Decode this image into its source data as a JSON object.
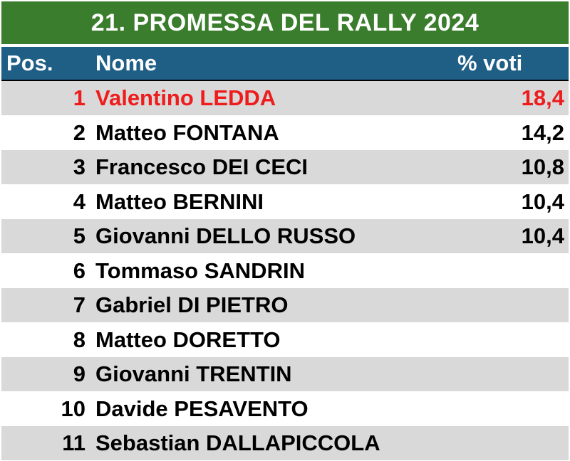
{
  "title": "21. PROMESSA DEL RALLY 2024",
  "headers": {
    "pos": "Pos.",
    "name": "Nome",
    "votes": "% voti"
  },
  "colors": {
    "title_bg": "#3a7d2c",
    "header_bg": "#1f5f86",
    "row_shade": "#d9d9d9",
    "highlight": "#ee1c1c"
  },
  "rows": [
    {
      "pos": "1",
      "name": "Valentino LEDDA",
      "votes": "18,4"
    },
    {
      "pos": "2",
      "name": "Matteo FONTANA",
      "votes": "14,2"
    },
    {
      "pos": "3",
      "name": "Francesco DEI CECI",
      "votes": "10,8"
    },
    {
      "pos": "4",
      "name": "Matteo BERNINI",
      "votes": "10,4"
    },
    {
      "pos": "5",
      "name": "Giovanni DELLO RUSSO",
      "votes": "10,4"
    },
    {
      "pos": "6",
      "name": "Tommaso SANDRIN",
      "votes": ""
    },
    {
      "pos": "7",
      "name": "Gabriel DI PIETRO",
      "votes": ""
    },
    {
      "pos": "8",
      "name": "Matteo DORETTO",
      "votes": ""
    },
    {
      "pos": "9",
      "name": "Giovanni TRENTIN",
      "votes": ""
    },
    {
      "pos": "10",
      "name": "Davide PESAVENTO",
      "votes": ""
    },
    {
      "pos": "11",
      "name": "Sebastian DALLAPICCOLA",
      "votes": ""
    }
  ]
}
